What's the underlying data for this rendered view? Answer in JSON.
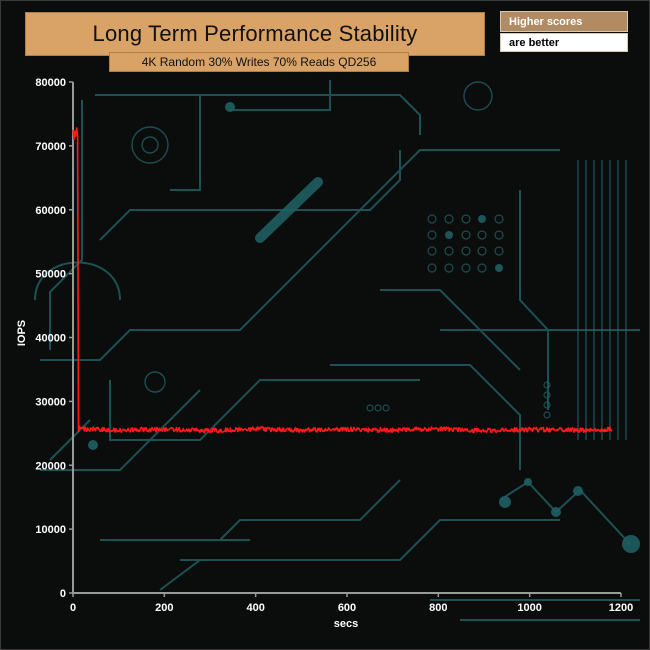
{
  "chart_data": {
    "type": "line",
    "title": "Long Term Performance Stability",
    "subtitle": "4K Random 30% Writes 70% Reads QD256",
    "xlabel": "secs",
    "ylabel": "IOPS",
    "xlim": [
      0,
      1200
    ],
    "ylim": [
      0,
      80000
    ],
    "x_ticks": [
      0,
      200,
      400,
      600,
      800,
      1000,
      1200
    ],
    "y_ticks": [
      0,
      10000,
      20000,
      30000,
      40000,
      50000,
      60000,
      70000,
      80000
    ],
    "grid": false,
    "series": [
      {
        "color": "#ff1a1a",
        "x": [
          0,
          2,
          4,
          6,
          8,
          10,
          12,
          14,
          16,
          18,
          20,
          40,
          100,
          200,
          300,
          400,
          500,
          600,
          700,
          800,
          900,
          1000,
          1100,
          1180
        ],
        "y": [
          72500,
          71000,
          72300,
          71500,
          72800,
          71600,
          25500,
          25900,
          25400,
          25800,
          25600,
          25700,
          25500,
          25600,
          25400,
          25700,
          25500,
          25600,
          25500,
          25700,
          25400,
          25600,
          25500,
          25600
        ]
      }
    ]
  },
  "legend": {
    "line1": "Higher scores",
    "line2": "are better"
  },
  "colors": {
    "background": "#0b0c0c",
    "circuit": "#1f5f62",
    "title_box": "#d9a266",
    "series": "#ff1a1a",
    "axis": "#9a9a9a"
  }
}
